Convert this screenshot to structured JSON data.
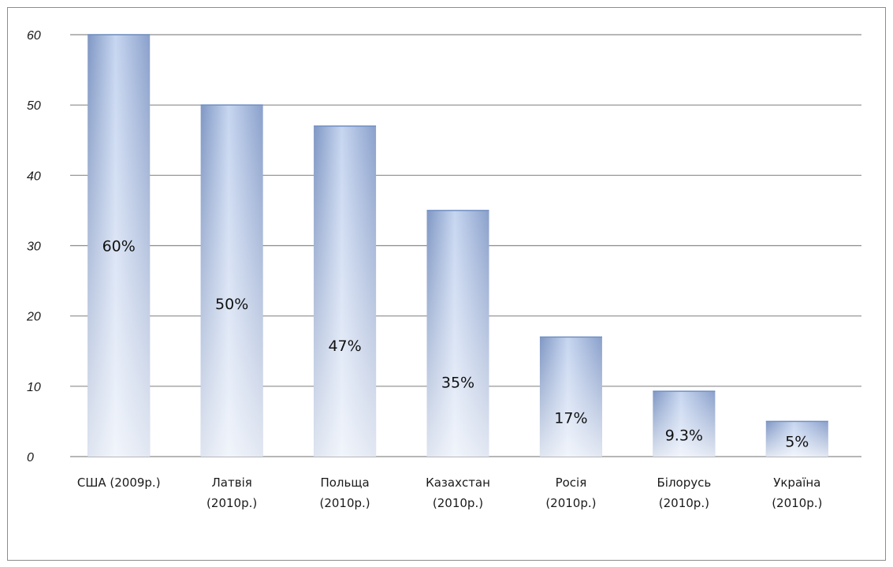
{
  "chart_data": {
    "type": "bar",
    "title": "",
    "xlabel": "",
    "ylabel": "",
    "ylim": [
      0,
      60
    ],
    "yticks": [
      "0",
      "10",
      "20",
      "30",
      "40",
      "50",
      "60"
    ],
    "grid": true,
    "legend": "none",
    "categories": [
      [
        "США (2009р.)"
      ],
      [
        "Латвія",
        "(2010р.)"
      ],
      [
        "Польща",
        "(2010р.)"
      ],
      [
        "Казахстан",
        "(2010р.)"
      ],
      [
        "Росія",
        "(2010р.)"
      ],
      [
        "Білорусь",
        "(2010р.)"
      ],
      [
        "Україна",
        "(2010р.)"
      ]
    ],
    "values": [
      60,
      50,
      47,
      35,
      17,
      9.3,
      5
    ],
    "data_labels": [
      "60%",
      "50%",
      "47%",
      "35%",
      "17%",
      "9.3%",
      "5%"
    ],
    "colors": {
      "bar_top": "#8aa8d8",
      "bar_mid": "#b8cbeb",
      "bar_bottom": "#f2f6fc",
      "bar_edge": "#6f8fc2",
      "grid": "#8c8c8c",
      "frame": "#8c8c8c"
    }
  }
}
